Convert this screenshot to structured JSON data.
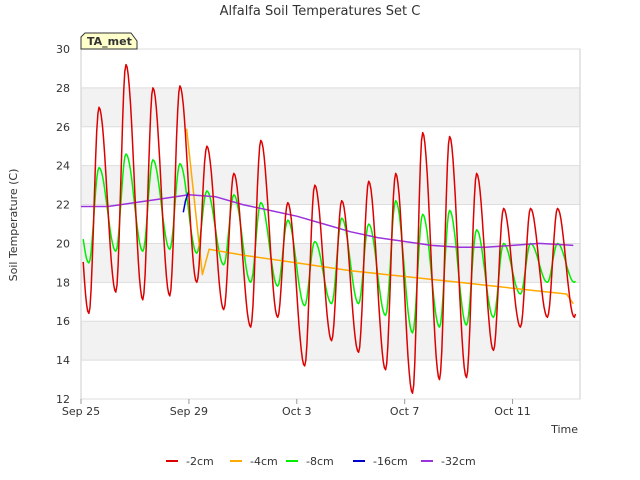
{
  "chart_data": {
    "type": "line",
    "title": "Alfalfa Soil Temperatures Set C",
    "xlabel": "Time",
    "ylabel": "Soil Temperature (C)",
    "ylim": [
      12,
      30
    ],
    "yticks": [
      12,
      14,
      16,
      18,
      20,
      22,
      24,
      26,
      28,
      30
    ],
    "xlim": [
      "2023-09-25",
      "2023-10-13T12:00"
    ],
    "xticks": [
      "Sep 25",
      "Sep 29",
      "Oct 3",
      "Oct 7",
      "Oct 11"
    ],
    "grid": "horizontal bands",
    "legend_position": "bottom",
    "annotation": "TA_met",
    "series": [
      {
        "name": "-2cm",
        "color": "#dd0000",
        "daily_peaks": [
          27.0,
          29.2,
          28.0,
          28.1,
          25.0,
          23.6,
          25.3,
          22.1,
          23.0,
          22.2,
          23.2,
          23.6,
          25.7,
          25.5,
          23.6,
          21.8
        ],
        "daily_mins": [
          16.4,
          17.5,
          17.1,
          17.3,
          18.0,
          16.6,
          15.7,
          16.2,
          13.7,
          15.0,
          14.4,
          13.5,
          12.3,
          13.0,
          13.1,
          14.5,
          15.7,
          16.2
        ]
      },
      {
        "name": "-4cm",
        "color": "#ffaa00",
        "points": [
          [
            "2023-09-28T22:00",
            25.9
          ],
          [
            "2023-09-29T12:00",
            18.4
          ],
          [
            "2023-09-29T18:00",
            19.7
          ],
          [
            "2023-10-01",
            19.4
          ],
          [
            "2023-10-03",
            19.0
          ],
          [
            "2023-10-05",
            18.6
          ],
          [
            "2023-10-07",
            18.3
          ],
          [
            "2023-10-09",
            18.0
          ],
          [
            "2023-10-11",
            17.7
          ],
          [
            "2023-10-13",
            17.4
          ],
          [
            "2023-10-13T06:00",
            16.9
          ]
        ]
      },
      {
        "name": "-8cm",
        "color": "#00ee00",
        "daily_peaks": [
          23.9,
          24.6,
          24.3,
          24.1,
          22.7,
          22.5,
          22.1,
          21.2,
          20.1,
          21.3,
          21.0,
          22.2,
          21.5,
          21.7,
          20.7,
          20.0
        ],
        "daily_mins": [
          19.0,
          19.6,
          19.6,
          19.7,
          19.5,
          18.9,
          18.0,
          17.8,
          16.8,
          16.9,
          16.9,
          16.3,
          15.4,
          15.7,
          15.8,
          16.2,
          17.4,
          18.0
        ]
      },
      {
        "name": "-16cm",
        "color": "#0000cc",
        "points": [
          [
            "2023-09-28T19:00",
            21.6
          ],
          [
            "2023-09-28T21:00",
            22.2
          ],
          [
            "2023-09-29T00:00",
            22.7
          ]
        ]
      },
      {
        "name": "-32cm",
        "color": "#9933dd",
        "points": [
          [
            "2023-09-25",
            21.9
          ],
          [
            "2023-09-26",
            21.9
          ],
          [
            "2023-09-27",
            22.1
          ],
          [
            "2023-09-28",
            22.3
          ],
          [
            "2023-09-29",
            22.5
          ],
          [
            "2023-09-30",
            22.4
          ],
          [
            "2023-10-01",
            22.0
          ],
          [
            "2023-10-02",
            21.7
          ],
          [
            "2023-10-03",
            21.4
          ],
          [
            "2023-10-04",
            21.0
          ],
          [
            "2023-10-05",
            20.6
          ],
          [
            "2023-10-06",
            20.3
          ],
          [
            "2023-10-07",
            20.1
          ],
          [
            "2023-10-08",
            19.9
          ],
          [
            "2023-10-09",
            19.8
          ],
          [
            "2023-10-10",
            19.8
          ],
          [
            "2023-10-11",
            19.9
          ],
          [
            "2023-10-12",
            20.0
          ],
          [
            "2023-10-13T06:00",
            19.9
          ]
        ]
      }
    ]
  }
}
